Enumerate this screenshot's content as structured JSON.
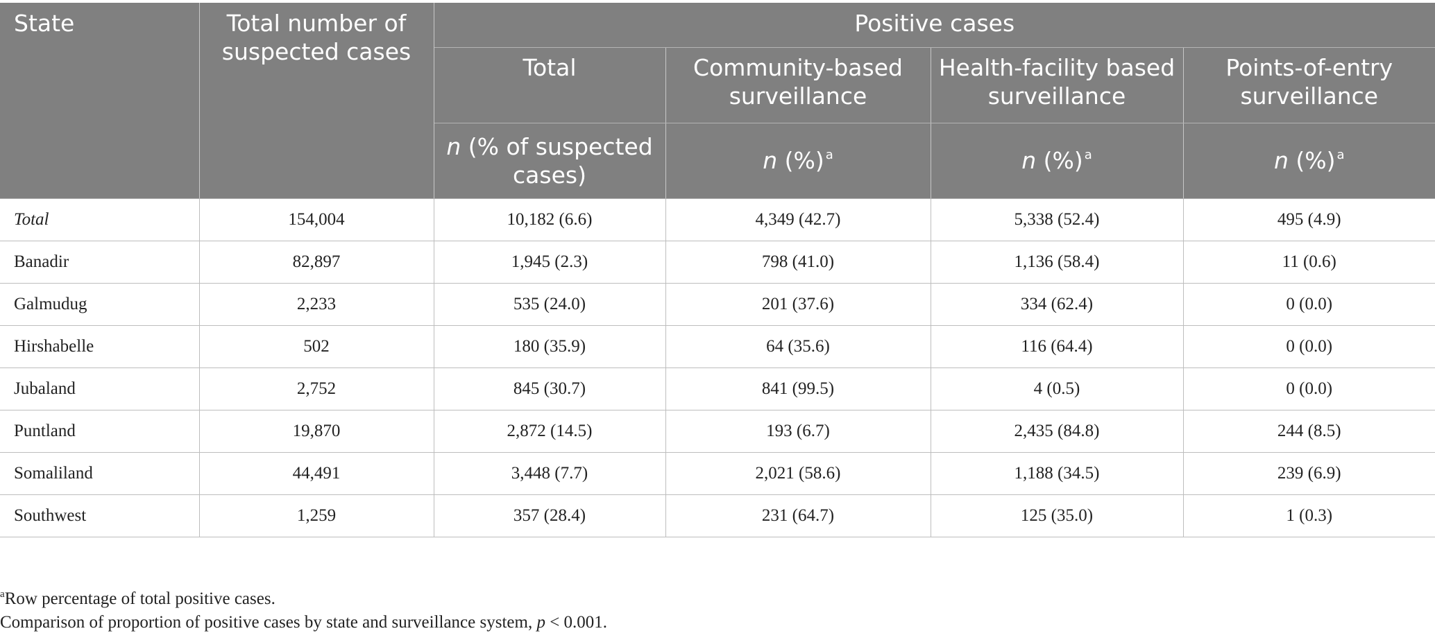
{
  "header": {
    "state": "State",
    "total_suspected": "Total number of suspected cases",
    "positive_cases": "Positive cases",
    "sub": {
      "total": "Total",
      "community": "Community-based surveillance",
      "health_facility": "Health-facility based surveillance",
      "points_of_entry": "Points-of-entry surveillance"
    },
    "units": {
      "total_n": "n",
      "total_rest": "(% of suspected cases)",
      "pct_n": "n",
      "pct_rest": "(%)",
      "pct_sup": "a"
    }
  },
  "rows": [
    {
      "state": "Total",
      "suspected": "154,004",
      "total": "10,182 (6.6)",
      "community": "4,349 (42.7)",
      "health_facility": "5,338 (52.4)",
      "points_of_entry": "495 (4.9)"
    },
    {
      "state": "Banadir",
      "suspected": "82,897",
      "total": "1,945 (2.3)",
      "community": "798 (41.0)",
      "health_facility": "1,136 (58.4)",
      "points_of_entry": "11 (0.6)"
    },
    {
      "state": "Galmudug",
      "suspected": "2,233",
      "total": "535 (24.0)",
      "community": "201 (37.6)",
      "health_facility": "334 (62.4)",
      "points_of_entry": "0 (0.0)"
    },
    {
      "state": "Hirshabelle",
      "suspected": "502",
      "total": "180 (35.9)",
      "community": "64 (35.6)",
      "health_facility": "116 (64.4)",
      "points_of_entry": "0 (0.0)"
    },
    {
      "state": "Jubaland",
      "suspected": "2,752",
      "total": "845 (30.7)",
      "community": "841 (99.5)",
      "health_facility": "4 (0.5)",
      "points_of_entry": "0 (0.0)"
    },
    {
      "state": "Puntland",
      "suspected": "19,870",
      "total": "2,872 (14.5)",
      "community": "193 (6.7)",
      "health_facility": "2,435 (84.8)",
      "points_of_entry": "244 (8.5)"
    },
    {
      "state": "Somaliland",
      "suspected": "44,491",
      "total": "3,448 (7.7)",
      "community": "2,021 (58.6)",
      "health_facility": "1,188 (34.5)",
      "points_of_entry": "239 (6.9)"
    },
    {
      "state": "Southwest",
      "suspected": "1,259",
      "total": "357 (28.4)",
      "community": "231 (64.7)",
      "health_facility": "125 (35.0)",
      "points_of_entry": "1 (0.3)"
    }
  ],
  "footnotes": {
    "a_marker": "a",
    "a_text": "Row percentage of total positive cases.",
    "comparison_text": "Comparison of proportion of positive cases by state and surveillance system,",
    "p_symbol": "p",
    "p_value": "< 0.001."
  }
}
